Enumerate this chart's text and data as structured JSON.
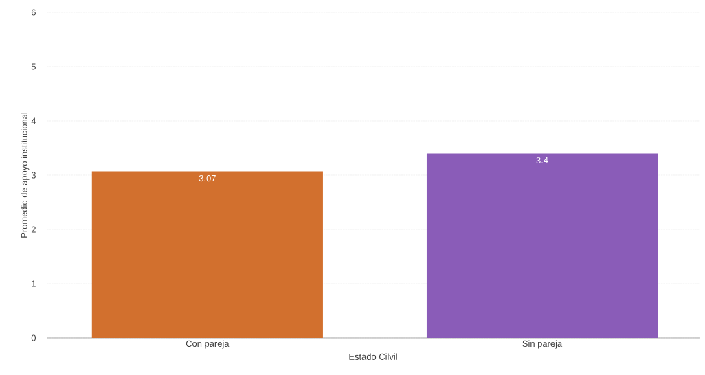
{
  "chart_data": {
    "type": "bar",
    "xlabel": "Estado Cilvil",
    "ylabel": "Promedio de apoyo institucional",
    "categories": [
      "Con pareja",
      "Sin pareja"
    ],
    "values": [
      3.07,
      3.4
    ],
    "colors": [
      "#d2702e",
      "#8a5cb8"
    ],
    "ylim": [
      0,
      6
    ],
    "yticks": [
      0,
      1,
      2,
      3,
      4,
      5,
      6
    ],
    "grid": "y",
    "data_labels": true
  }
}
